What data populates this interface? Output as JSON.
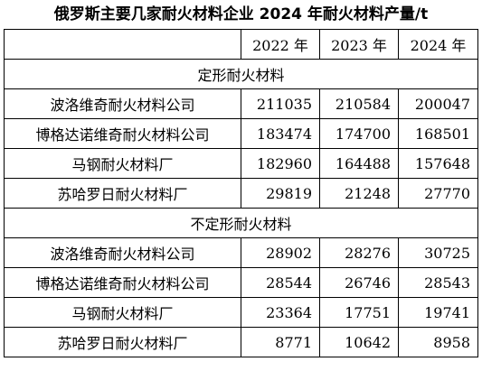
{
  "title": "俄罗斯主要几家耐火材料企业 2024 年耐火材料产量/t",
  "header": [
    "",
    "2022 年",
    "2023 年",
    "2024 年"
  ],
  "sections": [
    {
      "label": "定形耐火材料",
      "rows": [
        {
          "name": "波洛维奇耐火材料公司",
          "values": [
            "211035",
            "210584",
            "200047"
          ]
        },
        {
          "name": "博格达诺维奇耐火材料公司",
          "values": [
            "183474",
            "174700",
            "168501"
          ]
        },
        {
          "name": "马钢耐火材料厂",
          "values": [
            "182960",
            "164488",
            "157648"
          ]
        },
        {
          "name": "苏哈罗日耐火材料厂",
          "values": [
            "29819",
            "21248",
            "27770"
          ]
        }
      ]
    },
    {
      "label": "不定形耐火材料",
      "rows": [
        {
          "name": "波洛维奇耐火材料公司",
          "values": [
            "28902",
            "28276",
            "30725"
          ]
        },
        {
          "name": "博格达诺维奇耐火材料公司",
          "values": [
            "28544",
            "26746",
            "28543"
          ]
        },
        {
          "name": "马钢耐火材料厂",
          "values": [
            "23364",
            "17751",
            "19741"
          ]
        },
        {
          "name": "苏哈罗日耐火材料厂",
          "values": [
            "8771",
            "10642",
            "8958"
          ]
        }
      ]
    }
  ]
}
